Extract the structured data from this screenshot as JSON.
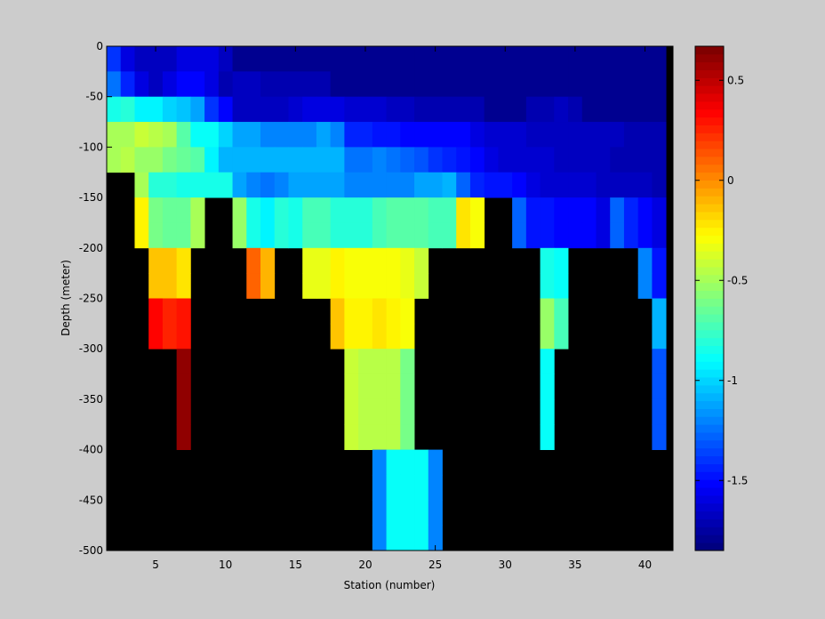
{
  "chart_data": [
    {
      "type": "heatmap",
      "title": "",
      "xlabel": "Station (number)",
      "ylabel": "Depth (meter)",
      "xlim": [
        1.5,
        42
      ],
      "ylim": [
        -500,
        0
      ],
      "xticks": [
        5,
        10,
        15,
        20,
        25,
        30,
        35,
        40
      ],
      "yticks": [
        0,
        -50,
        -100,
        -150,
        -200,
        -250,
        -300,
        -350,
        -400,
        -450,
        -500
      ],
      "stations_start": 2,
      "depth_levels": [
        -12.5,
        -37.5,
        -62.5,
        -87.5,
        -112.5,
        -137.5,
        -162.5,
        -187.5,
        -212.5,
        -237.5,
        -262.5,
        -287.5,
        -312.5,
        -337.5,
        -362.5,
        -387.5,
        -412.5,
        -437.5,
        -462.5,
        -487.5
      ],
      "missing_value_color": "#000000",
      "values": [
        [
          -1.4,
          -1.6,
          -1.7,
          -1.7,
          -1.7,
          -1.6,
          -1.6,
          -1.6,
          -1.7,
          -1.8,
          -1.8,
          -1.8,
          -1.8,
          -1.8,
          -1.8,
          -1.8,
          -1.8,
          -1.8,
          -1.8,
          -1.8,
          -1.8,
          -1.8,
          -1.8,
          -1.8,
          -1.8,
          -1.8,
          -1.8,
          -1.8,
          -1.8,
          -1.8,
          -1.8,
          -1.8,
          -1.8,
          -1.8,
          -1.8,
          -1.8,
          -1.8,
          -1.8,
          -1.8,
          -1.8
        ],
        [
          -1.25,
          -1.45,
          -1.6,
          -1.7,
          -1.6,
          -1.55,
          -1.55,
          -1.6,
          -1.75,
          -1.7,
          -1.7,
          -1.75,
          -1.75,
          -1.75,
          -1.75,
          -1.75,
          -1.8,
          -1.8,
          -1.8,
          -1.8,
          -1.8,
          -1.8,
          -1.8,
          -1.8,
          -1.8,
          -1.8,
          -1.8,
          -1.8,
          -1.8,
          -1.8,
          -1.8,
          -1.8,
          -1.8,
          -1.8,
          -1.8,
          -1.8,
          -1.8,
          -1.8,
          -1.8,
          -1.8
        ],
        [
          -0.85,
          -0.8,
          -0.95,
          -0.95,
          -1.0,
          -1.05,
          -1.15,
          -1.4,
          -1.55,
          -1.7,
          -1.7,
          -1.7,
          -1.7,
          -1.65,
          -1.6,
          -1.6,
          -1.6,
          -1.65,
          -1.65,
          -1.65,
          -1.7,
          -1.7,
          -1.75,
          -1.75,
          -1.75,
          -1.75,
          -1.75,
          -1.8,
          -1.8,
          -1.8,
          -1.75,
          -1.75,
          -1.7,
          -1.75,
          -1.8,
          -1.8,
          -1.8,
          -1.8,
          -1.8,
          -1.8
        ],
        [
          -0.5,
          -0.5,
          -0.4,
          -0.45,
          -0.5,
          -0.7,
          -0.9,
          -0.9,
          -1.0,
          -1.15,
          -1.15,
          -1.2,
          -1.2,
          -1.2,
          -1.2,
          -1.15,
          -1.2,
          -1.45,
          -1.45,
          -1.5,
          -1.5,
          -1.55,
          -1.55,
          -1.55,
          -1.55,
          -1.55,
          -1.6,
          -1.65,
          -1.65,
          -1.65,
          -1.7,
          -1.7,
          -1.7,
          -1.7,
          -1.7,
          -1.7,
          -1.7,
          -1.75,
          -1.75,
          -1.75
        ],
        [
          -0.5,
          -0.45,
          -0.55,
          -0.55,
          -0.6,
          -0.65,
          -0.7,
          -0.95,
          -1.1,
          -1.1,
          -1.1,
          -1.1,
          -1.1,
          -1.1,
          -1.1,
          -1.1,
          -1.1,
          -1.25,
          -1.25,
          -1.2,
          -1.25,
          -1.3,
          -1.35,
          -1.4,
          -1.45,
          -1.5,
          -1.55,
          -1.6,
          -1.65,
          -1.65,
          -1.65,
          -1.65,
          -1.7,
          -1.7,
          -1.7,
          -1.7,
          -1.75,
          -1.75,
          -1.75,
          -1.75
        ],
        [
          null,
          null,
          -0.5,
          -0.8,
          -0.8,
          -0.85,
          -0.85,
          -0.85,
          -0.85,
          -1.15,
          -1.2,
          -1.25,
          -1.2,
          -1.15,
          -1.15,
          -1.15,
          -1.15,
          -1.2,
          -1.2,
          -1.2,
          -1.2,
          -1.2,
          -1.15,
          -1.15,
          -1.1,
          -1.3,
          -1.45,
          -1.5,
          -1.5,
          -1.55,
          -1.6,
          -1.65,
          -1.65,
          -1.65,
          -1.65,
          -1.7,
          -1.7,
          -1.7,
          -1.7,
          -1.75
        ],
        [
          null,
          null,
          -0.25,
          -0.6,
          -0.65,
          -0.65,
          -0.5,
          null,
          null,
          -0.55,
          -0.85,
          -0.95,
          -0.8,
          -0.85,
          -0.75,
          -0.75,
          -0.8,
          -0.8,
          -0.8,
          -0.75,
          -0.7,
          -0.7,
          -0.7,
          -0.75,
          -0.75,
          -0.2,
          -0.3,
          null,
          null,
          -1.3,
          -1.5,
          -1.5,
          -1.55,
          -1.55,
          -1.55,
          -1.6,
          -1.3,
          -1.45,
          -1.55,
          -1.6
        ],
        [
          null,
          null,
          -0.25,
          -0.6,
          -0.65,
          -0.65,
          -0.5,
          null,
          null,
          -0.55,
          -0.85,
          -0.95,
          -0.8,
          -0.85,
          -0.75,
          -0.75,
          -0.8,
          -0.8,
          -0.8,
          -0.75,
          -0.7,
          -0.7,
          -0.7,
          -0.75,
          -0.75,
          -0.2,
          -0.3,
          null,
          null,
          -1.3,
          -1.5,
          -1.5,
          -1.55,
          -1.55,
          -1.55,
          -1.6,
          -1.3,
          -1.45,
          -1.55,
          -1.6
        ],
        [
          null,
          null,
          null,
          -0.15,
          -0.15,
          -0.2,
          null,
          null,
          null,
          null,
          0.1,
          -0.1,
          null,
          null,
          -0.35,
          -0.35,
          -0.25,
          -0.3,
          -0.3,
          -0.3,
          -0.3,
          -0.35,
          -0.4,
          null,
          null,
          null,
          null,
          null,
          null,
          null,
          null,
          -0.85,
          -0.9,
          null,
          null,
          null,
          null,
          null,
          -1.2,
          -1.5
        ],
        [
          null,
          null,
          null,
          -0.15,
          -0.15,
          -0.2,
          null,
          null,
          null,
          null,
          0.1,
          -0.1,
          null,
          null,
          -0.35,
          -0.35,
          -0.25,
          -0.3,
          -0.3,
          -0.3,
          -0.3,
          -0.35,
          -0.4,
          null,
          null,
          null,
          null,
          null,
          null,
          null,
          null,
          -0.85,
          -0.9,
          null,
          null,
          null,
          null,
          null,
          -1.2,
          -1.5
        ],
        [
          null,
          null,
          null,
          0.35,
          0.25,
          0.3,
          null,
          null,
          null,
          null,
          null,
          null,
          null,
          null,
          null,
          null,
          -0.15,
          -0.25,
          -0.25,
          -0.2,
          -0.25,
          -0.3,
          null,
          null,
          null,
          null,
          null,
          null,
          null,
          null,
          null,
          -0.55,
          -0.75,
          null,
          null,
          null,
          null,
          null,
          null,
          -1.1
        ],
        [
          null,
          null,
          null,
          0.35,
          0.25,
          0.3,
          null,
          null,
          null,
          null,
          null,
          null,
          null,
          null,
          null,
          null,
          -0.15,
          -0.25,
          -0.25,
          -0.2,
          -0.25,
          -0.3,
          null,
          null,
          null,
          null,
          null,
          null,
          null,
          null,
          null,
          -0.55,
          -0.75,
          null,
          null,
          null,
          null,
          null,
          null,
          -1.1
        ],
        [
          null,
          null,
          null,
          null,
          null,
          0.62,
          null,
          null,
          null,
          null,
          null,
          null,
          null,
          null,
          null,
          null,
          null,
          -0.4,
          -0.45,
          -0.45,
          -0.45,
          -0.6,
          null,
          null,
          null,
          null,
          null,
          null,
          null,
          null,
          null,
          -0.9,
          null,
          null,
          null,
          null,
          null,
          null,
          null,
          -1.35
        ],
        [
          null,
          null,
          null,
          null,
          null,
          0.62,
          null,
          null,
          null,
          null,
          null,
          null,
          null,
          null,
          null,
          null,
          null,
          -0.4,
          -0.45,
          -0.45,
          -0.45,
          -0.6,
          null,
          null,
          null,
          null,
          null,
          null,
          null,
          null,
          null,
          -0.9,
          null,
          null,
          null,
          null,
          null,
          null,
          null,
          -1.35
        ],
        [
          null,
          null,
          null,
          null,
          null,
          0.62,
          null,
          null,
          null,
          null,
          null,
          null,
          null,
          null,
          null,
          null,
          null,
          -0.4,
          -0.45,
          -0.45,
          -0.45,
          -0.6,
          null,
          null,
          null,
          null,
          null,
          null,
          null,
          null,
          null,
          -0.9,
          null,
          null,
          null,
          null,
          null,
          null,
          null,
          -1.35
        ],
        [
          null,
          null,
          null,
          null,
          null,
          0.62,
          null,
          null,
          null,
          null,
          null,
          null,
          null,
          null,
          null,
          null,
          null,
          -0.4,
          -0.45,
          -0.45,
          -0.45,
          -0.6,
          null,
          null,
          null,
          null,
          null,
          null,
          null,
          null,
          null,
          -0.9,
          null,
          null,
          null,
          null,
          null,
          null,
          null,
          -1.35
        ],
        [
          null,
          null,
          null,
          null,
          null,
          null,
          null,
          null,
          null,
          null,
          null,
          null,
          null,
          null,
          null,
          null,
          null,
          null,
          null,
          -1.2,
          -0.9,
          -0.9,
          -0.9,
          -1.2,
          null,
          null,
          null,
          null,
          null,
          null,
          null,
          null,
          null,
          null,
          null,
          null,
          null,
          null,
          null,
          null
        ],
        [
          null,
          null,
          null,
          null,
          null,
          null,
          null,
          null,
          null,
          null,
          null,
          null,
          null,
          null,
          null,
          null,
          null,
          null,
          null,
          -1.2,
          -0.9,
          -0.9,
          -0.9,
          -1.2,
          null,
          null,
          null,
          null,
          null,
          null,
          null,
          null,
          null,
          null,
          null,
          null,
          null,
          null,
          null,
          null
        ],
        [
          null,
          null,
          null,
          null,
          null,
          null,
          null,
          null,
          null,
          null,
          null,
          null,
          null,
          null,
          null,
          null,
          null,
          null,
          null,
          -1.2,
          -0.9,
          -0.9,
          -0.9,
          -1.2,
          null,
          null,
          null,
          null,
          null,
          null,
          null,
          null,
          null,
          null,
          null,
          null,
          null,
          null,
          null,
          null
        ],
        [
          null,
          null,
          null,
          null,
          null,
          null,
          null,
          null,
          null,
          null,
          null,
          null,
          null,
          null,
          null,
          null,
          null,
          null,
          null,
          -1.2,
          -0.9,
          -0.9,
          -0.9,
          -1.2,
          null,
          null,
          null,
          null,
          null,
          null,
          null,
          null,
          null,
          null,
          null,
          null,
          null,
          null,
          null,
          null
        ]
      ]
    },
    {
      "type": "colorbar",
      "colormap": "jet",
      "range": [
        -1.85,
        0.67
      ],
      "levels": 64,
      "ticks": [
        0.5,
        0,
        -0.5,
        -1,
        -1.5
      ]
    }
  ]
}
